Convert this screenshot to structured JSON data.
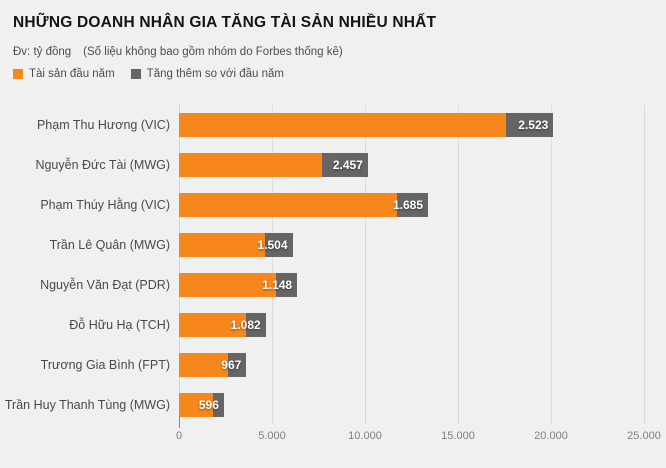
{
  "header": {
    "title": "NHỮNG DOANH NHÂN GIA TĂNG TÀI SẢN NHIỀU NHẤT",
    "unit_label": "Đv: tỷ đồng",
    "note": "(Số liệu không bao gồm nhóm do Forbes thống kê)"
  },
  "legend": [
    {
      "label": "Tài sản đầu năm",
      "color": "#f6871d"
    },
    {
      "label": "Tăng thêm so với đầu năm",
      "color": "#656565"
    }
  ],
  "colors": {
    "background": "#f0f0f1",
    "bar_start": "#f6871d",
    "bar_increase": "#656565",
    "gridline": "#dcdcdc",
    "tick_text": "#7f7f7f",
    "category_text": "#4a4a4a"
  },
  "chart_data": {
    "type": "bar",
    "orientation": "horizontal",
    "stacked": true,
    "title": "NHỮNG DOANH NHÂN GIA TĂNG TÀI SẢN NHIỀU NHẤT",
    "unit": "tỷ đồng",
    "grid": true,
    "legend_position": "top",
    "categories": [
      "Phạm Thu Hương (VIC)",
      "Nguyễn Đức Tài (MWG)",
      "Phạm Thúy Hằng (VIC)",
      "Trần Lê Quân (MWG)",
      "Nguyễn Văn Đạt (PDR)",
      "Đỗ Hữu Hạ (TCH)",
      "Trương Gia Bình (FPT)",
      "Trần Huy Thanh Tùng (MWG)"
    ],
    "series": [
      {
        "name": "Tài sản đầu năm",
        "color": "#f6871d",
        "values_estimated_from_pixels": true,
        "values": [
          17600,
          7700,
          11700,
          4600,
          5200,
          3580,
          2650,
          1820
        ]
      },
      {
        "name": "Tăng thêm so với đầu năm",
        "color": "#656565",
        "values": [
          2523,
          2457,
          1685,
          1504,
          1148,
          1082,
          967,
          596
        ],
        "data_labels": [
          "2.523",
          "2.457",
          "1.685",
          "1.504",
          "1.148",
          "1.082",
          "967",
          "596"
        ]
      }
    ],
    "x_axis": {
      "min": 0,
      "max": 25000,
      "ticks": [
        0,
        5000,
        10000,
        15000,
        20000,
        25000
      ],
      "tick_labels": [
        "0",
        "5.000",
        "10.000",
        "15.000",
        "20.000",
        "25.000"
      ]
    }
  }
}
